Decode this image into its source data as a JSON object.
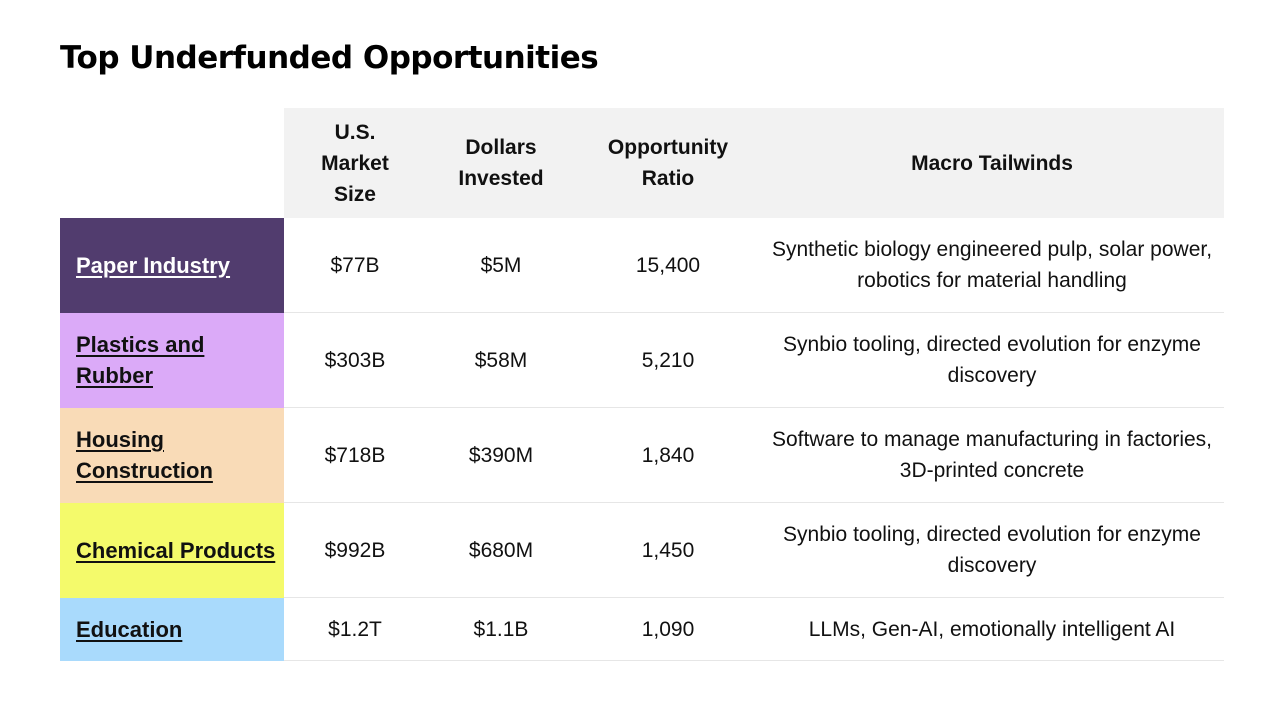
{
  "page_title": "Top Underfunded Opportunities",
  "chart_data": {
    "type": "table",
    "title": "Top Underfunded Opportunities",
    "columns": [
      "",
      "U.S.\nMarket\nSize",
      "Dollars\nInvested",
      "Opportunity\nRatio",
      "Macro Tailwinds"
    ],
    "rows": [
      {
        "industry": "Paper Industry",
        "market_size": "$77B",
        "invested": "$5M",
        "ratio": "15,400",
        "tailwinds": "Synthetic biology engineered pulp, solar power, robotics for material handling",
        "color": "#513c6e",
        "text_color": "#ffffff"
      },
      {
        "industry": "Plastics and Rubber",
        "market_size": "$303B",
        "invested": "$58M",
        "ratio": "5,210",
        "tailwinds": "Synbio tooling, directed evolution for enzyme discovery",
        "color": "#dbaaf8",
        "text_color": "#111111"
      },
      {
        "industry": "Housing Construction",
        "market_size": "$718B",
        "invested": "$390M",
        "ratio": "1,840",
        "tailwinds": "Software to manage manufacturing in factories, 3D-printed concrete",
        "color": "#f9dbb7",
        "text_color": "#111111"
      },
      {
        "industry": "Chemical Products",
        "market_size": "$992B",
        "invested": "$680M",
        "ratio": "1,450",
        "tailwinds": "Synbio tooling, directed evolution for enzyme discovery",
        "color": "#f4fa6b",
        "text_color": "#111111"
      },
      {
        "industry": "Education",
        "market_size": "$1.2T",
        "invested": "$1.1B",
        "ratio": "1,090",
        "tailwinds": "LLMs, Gen-AI, emotionally intelligent AI",
        "color": "#a9dafc",
        "text_color": "#111111"
      }
    ]
  },
  "colors": {
    "header_bg": "#f2f2f2",
    "row_divider": "#e6e6e6",
    "text": "#111111"
  }
}
